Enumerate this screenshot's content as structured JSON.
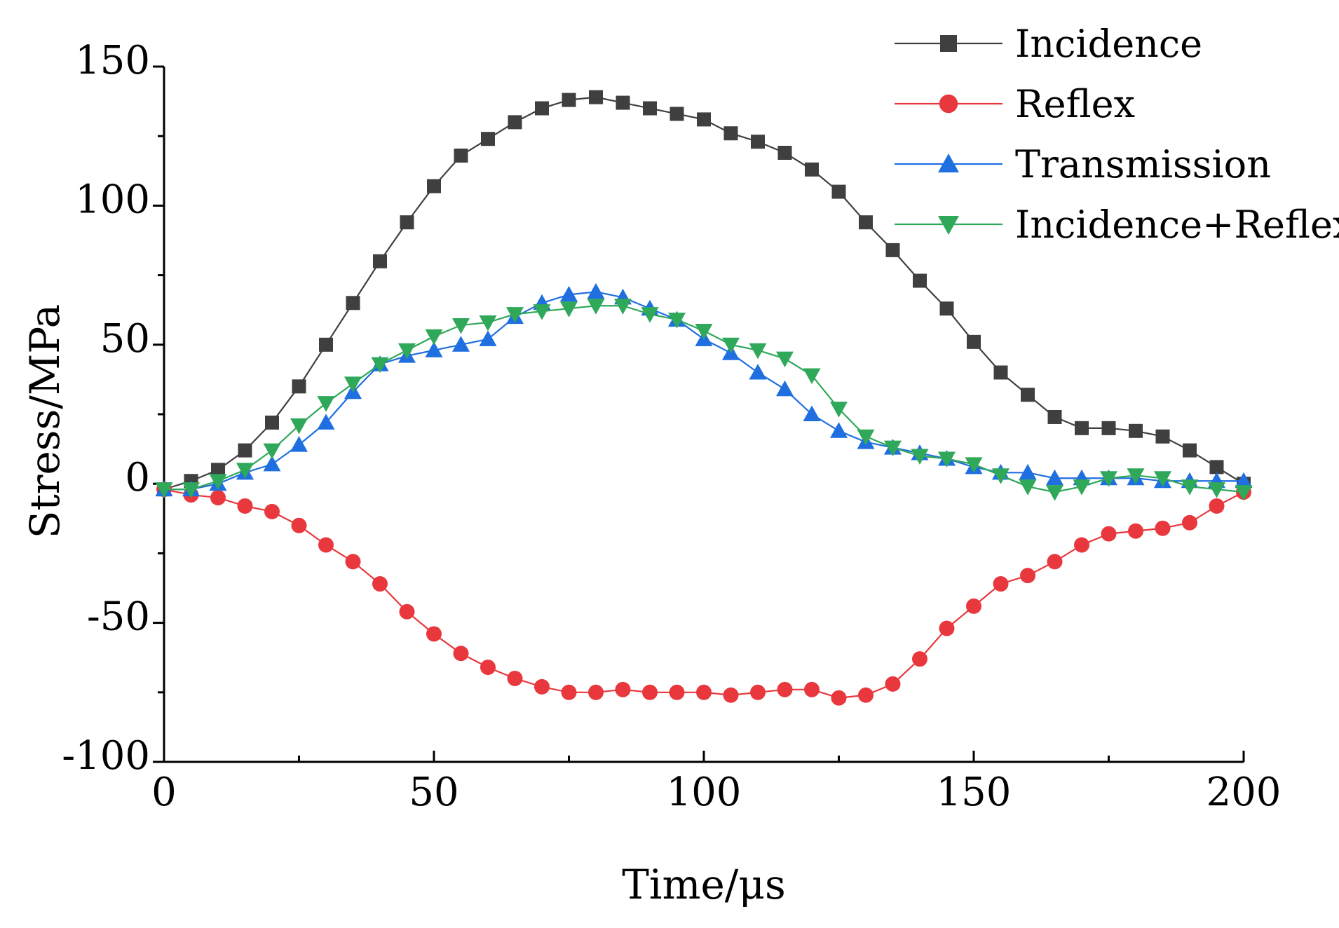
{
  "chart_data": {
    "type": "line",
    "title": "",
    "xlabel": "Time/μs",
    "ylabel": "Stress/MPa",
    "xlim": [
      0,
      200
    ],
    "ylim": [
      -100,
      150
    ],
    "xticks": [
      0,
      50,
      100,
      150,
      200
    ],
    "yticks": [
      -100,
      -50,
      0,
      50,
      100,
      150
    ],
    "xtick_labels": [
      "0",
      "50",
      "100",
      "150",
      "200"
    ],
    "ytick_labels": [
      "-100",
      "-50",
      "0",
      "50",
      "100",
      "150"
    ],
    "grid": false,
    "legend_position": "top-right",
    "x": [
      0,
      5,
      10,
      15,
      20,
      25,
      30,
      35,
      40,
      45,
      50,
      55,
      60,
      65,
      70,
      75,
      80,
      85,
      90,
      95,
      100,
      105,
      110,
      115,
      120,
      125,
      130,
      135,
      140,
      145,
      150,
      155,
      160,
      165,
      170,
      175,
      180,
      185,
      190,
      195,
      200
    ],
    "series": [
      {
        "name": "Incidence",
        "color": "#3f3f3f",
        "marker": "square",
        "values": [
          -2,
          1,
          5,
          12,
          22,
          35,
          50,
          65,
          80,
          94,
          107,
          118,
          124,
          130,
          135,
          138,
          139,
          137,
          135,
          133,
          131,
          126,
          123,
          119,
          113,
          105,
          94,
          84,
          73,
          63,
          51,
          40,
          32,
          24,
          20,
          20,
          19,
          17,
          12,
          6,
          0
        ]
      },
      {
        "name": "Reflex",
        "color": "#e8383d",
        "marker": "circle",
        "values": [
          -2,
          -4,
          -5,
          -8,
          -10,
          -15,
          -22,
          -28,
          -36,
          -46,
          -54,
          -61,
          -66,
          -70,
          -73,
          -75,
          -75,
          -74,
          -75,
          -75,
          -75,
          -76,
          -75,
          -74,
          -74,
          -77,
          -76,
          -72,
          -63,
          -52,
          -44,
          -36,
          -33,
          -28,
          -22,
          -18,
          -17,
          -16,
          -14,
          -8,
          -3
        ]
      },
      {
        "name": "Transmission",
        "color": "#1f6fe0",
        "marker": "triangle-up",
        "values": [
          -2,
          -2,
          0,
          4,
          7,
          14,
          22,
          33,
          43,
          46,
          48,
          50,
          52,
          60,
          65,
          68,
          69,
          67,
          63,
          59,
          52,
          47,
          40,
          34,
          25,
          19,
          15,
          13,
          11,
          9,
          6,
          4,
          4,
          2,
          2,
          2,
          2,
          1,
          1,
          1,
          1
        ]
      },
      {
        "name": "Incidence+Reflex",
        "color": "#2fa85a",
        "marker": "triangle-down",
        "values": [
          -2,
          -2,
          1,
          5,
          12,
          21,
          29,
          36,
          43,
          48,
          53,
          57,
          58,
          61,
          62,
          63,
          64,
          64,
          61,
          59,
          55,
          50,
          48,
          45,
          39,
          27,
          17,
          13,
          10,
          9,
          7,
          3,
          -1,
          -3,
          -1,
          2,
          3,
          2,
          -1,
          -2,
          -3
        ]
      }
    ]
  }
}
